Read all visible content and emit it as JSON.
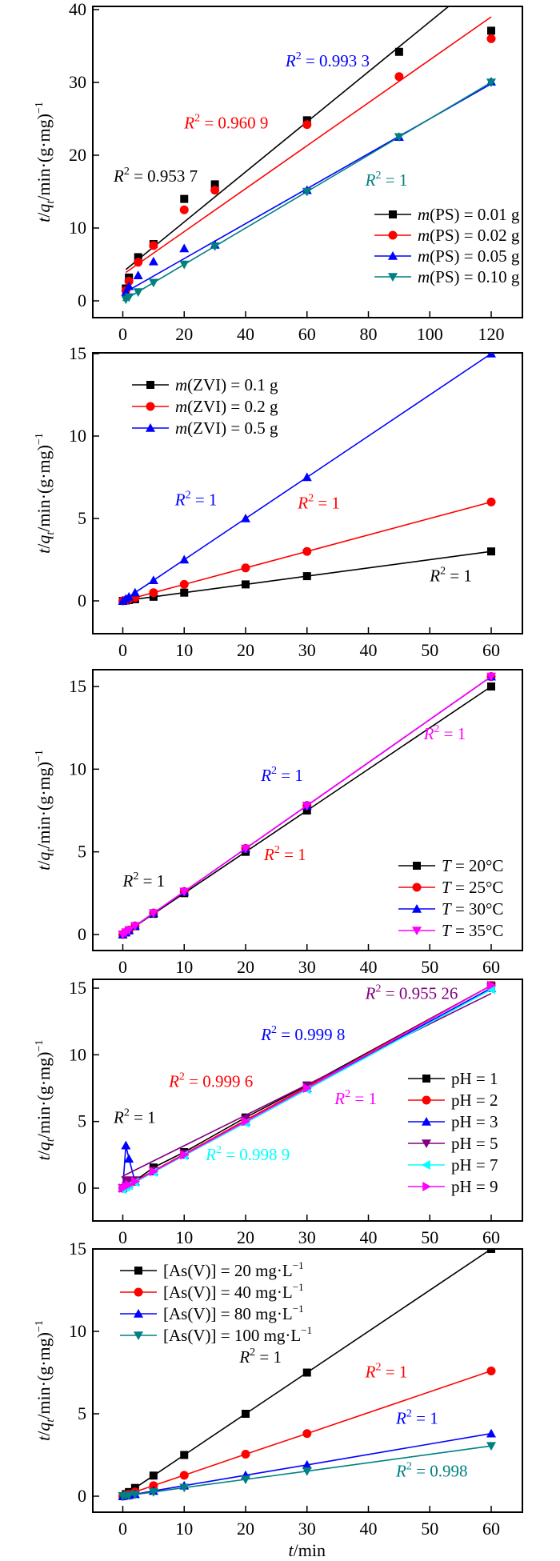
{
  "figure": {
    "panels": 5,
    "shared_xlabel": "t/min"
  },
  "chart_data": [
    {
      "id": "ps",
      "type": "line",
      "title": "",
      "xlabel": "",
      "ylabel": "t/q_t/min·(g·mg)^-1",
      "xlim": [
        -10,
        130
      ],
      "ylim": [
        -2.3,
        40.4
      ],
      "xticks": [
        0,
        20,
        40,
        60,
        80,
        100,
        120
      ],
      "yticks": [
        0,
        10,
        20,
        30,
        40
      ],
      "legend_position": "middle-right",
      "series": [
        {
          "name": "m(PS) = 0.01 g",
          "prefix": "m",
          "label_rest": "(PS) = 0.01 g",
          "color": "#000000",
          "marker": "square",
          "x": [
            1,
            2,
            5,
            10,
            20,
            30,
            60,
            90,
            120
          ],
          "y": [
            1.7,
            3.2,
            6.0,
            7.8,
            14.0,
            16.0,
            24.8,
            34.2,
            37.1
          ],
          "fit": {
            "x": [
              1,
              106
            ],
            "y": [
              4.3,
              40.4
            ]
          },
          "connect": false
        },
        {
          "name": "m(PS) = 0.02 g",
          "prefix": "m",
          "label_rest": "(PS) = 0.02 g",
          "color": "#ff0000",
          "marker": "circle",
          "x": [
            1,
            2,
            5,
            10,
            20,
            30,
            60,
            90,
            120
          ],
          "y": [
            1.4,
            2.7,
            5.3,
            7.6,
            12.5,
            15.2,
            24.2,
            30.8,
            36.0
          ],
          "fit": {
            "x": [
              1,
              120
            ],
            "y": [
              3.9,
              39.0
            ]
          },
          "connect": false
        },
        {
          "name": "m(PS) = 0.05 g",
          "prefix": "m",
          "label_rest": "(PS) = 0.05 g",
          "color": "#0000ff",
          "marker": "triangle-up",
          "x": [
            1,
            2,
            5,
            10,
            20,
            30,
            60,
            90,
            120
          ],
          "y": [
            1.2,
            2.0,
            3.5,
            5.4,
            7.2,
            7.7,
            15.2,
            22.5,
            30.1
          ],
          "fit": {
            "x": [
              0,
              120
            ],
            "y": [
              1.0,
              29.8
            ]
          },
          "connect": false
        },
        {
          "name": "m(PS) = 0.10 g",
          "prefix": "m",
          "label_rest": "(PS) = 0.10 g",
          "color": "#008080",
          "marker": "triangle-down",
          "x": [
            1,
            2,
            5,
            10,
            20,
            30,
            60,
            90,
            120
          ],
          "y": [
            0.2,
            0.5,
            1.2,
            2.5,
            5.0,
            7.5,
            15.0,
            22.5,
            30.0
          ],
          "fit": {
            "x": [
              0,
              120
            ],
            "y": [
              0.0,
              30.0
            ]
          },
          "connect": false
        }
      ],
      "annotations": [
        {
          "text_r": "R",
          "text_rest": " = 0.993 3",
          "color": "#0000ff",
          "x": 53,
          "y": 32.2
        },
        {
          "text_r": "R",
          "text_rest": " = 0.960 9",
          "color": "#ff0000",
          "x": 20,
          "y": 23.7
        },
        {
          "text_r": "R",
          "text_rest": " = 1",
          "color": "#008080",
          "x": 79,
          "y": 15.8
        },
        {
          "text_r": "R",
          "text_rest": " = 0.953 7",
          "color": "#000000",
          "x": -3,
          "y": 16.4
        }
      ]
    },
    {
      "id": "zvi",
      "type": "line",
      "xlabel": "",
      "ylabel": "t/q_t/min·(g·mg)^-1",
      "xlim": [
        -5,
        65
      ],
      "ylim": [
        -2.0,
        15.0
      ],
      "xticks": [
        0,
        10,
        20,
        30,
        40,
        50,
        60
      ],
      "yticks": [
        0,
        5,
        10,
        15
      ],
      "legend_position": "top-left",
      "series": [
        {
          "name": "m(ZVI) = 0.1 g",
          "prefix": "m",
          "label_rest": "(ZVI) = 0.1 g",
          "color": "#000000",
          "marker": "square",
          "x": [
            0,
            0.5,
            1,
            2,
            5,
            10,
            20,
            30,
            60
          ],
          "y": [
            0,
            0.025,
            0.05,
            0.1,
            0.25,
            0.5,
            1.0,
            1.5,
            3.0
          ],
          "connect": true
        },
        {
          "name": "m(ZVI) = 0.2 g",
          "prefix": "m",
          "label_rest": "(ZVI) = 0.2 g",
          "color": "#ff0000",
          "marker": "circle",
          "x": [
            0,
            0.5,
            1,
            2,
            5,
            10,
            20,
            30,
            60
          ],
          "y": [
            0,
            0.05,
            0.1,
            0.2,
            0.5,
            1.0,
            2.0,
            3.0,
            6.0
          ],
          "connect": true
        },
        {
          "name": "m(ZVI) = 0.5 g",
          "prefix": "m",
          "label_rest": "(ZVI) = 0.5 g",
          "color": "#0000ff",
          "marker": "triangle-up",
          "x": [
            0,
            0.5,
            1,
            2,
            5,
            10,
            20,
            30,
            60
          ],
          "y": [
            0,
            0.125,
            0.25,
            0.5,
            1.25,
            2.5,
            5.0,
            7.5,
            15.0
          ],
          "connect": true
        }
      ],
      "annotations": [
        {
          "text_r": "R",
          "text_rest": " = 1",
          "color": "#0000ff",
          "x": 8.5,
          "y": 5.8
        },
        {
          "text_r": "R",
          "text_rest": " = 1",
          "color": "#ff0000",
          "x": 28.5,
          "y": 5.6
        },
        {
          "text_r": "R",
          "text_rest": " = 1",
          "color": "#000000",
          "x": 50,
          "y": 1.2
        }
      ]
    },
    {
      "id": "temperature",
      "type": "line",
      "xlabel": "",
      "ylabel": "t/q_t/min·(g·mg)^-1",
      "xlim": [
        -5,
        65
      ],
      "ylim": [
        -1.0,
        16.0
      ],
      "xticks": [
        0,
        10,
        20,
        30,
        40,
        50,
        60
      ],
      "yticks": [
        0,
        5,
        10,
        15
      ],
      "legend_position": "bottom-right",
      "series": [
        {
          "name": "T = 20°C",
          "prefix": "T",
          "label_rest": " = 20°C",
          "color": "#000000",
          "marker": "square",
          "x": [
            0,
            0.5,
            1,
            2,
            5,
            10,
            20,
            30,
            60
          ],
          "y": [
            0,
            0.125,
            0.25,
            0.5,
            1.25,
            2.5,
            5.0,
            7.5,
            15.0
          ],
          "connect": true
        },
        {
          "name": "T = 25°C",
          "prefix": "T",
          "label_rest": " = 25°C",
          "color": "#ff0000",
          "marker": "circle",
          "x": [
            0,
            0.5,
            1,
            2,
            5,
            10,
            20,
            30,
            60
          ],
          "y": [
            0,
            0.13,
            0.26,
            0.52,
            1.3,
            2.6,
            5.2,
            7.8,
            15.6
          ],
          "connect": true
        },
        {
          "name": "T = 30°C",
          "prefix": "T",
          "label_rest": " = 30°C",
          "color": "#0000ff",
          "marker": "triangle-up",
          "x": [
            0,
            0.5,
            1,
            2,
            5,
            10,
            20,
            30,
            60
          ],
          "y": [
            0,
            0.13,
            0.26,
            0.52,
            1.3,
            2.6,
            5.2,
            7.8,
            15.6
          ],
          "connect": true
        },
        {
          "name": "T = 35°C",
          "prefix": "T",
          "label_rest": " = 35°C",
          "color": "#ff00ff",
          "marker": "triangle-down",
          "x": [
            0,
            0.5,
            1,
            2,
            5,
            10,
            20,
            30,
            60
          ],
          "y": [
            0,
            0.13,
            0.26,
            0.52,
            1.3,
            2.6,
            5.2,
            7.8,
            15.6
          ],
          "connect": true
        }
      ],
      "annotations": [
        {
          "text_r": "R",
          "text_rest": " = 1",
          "color": "#ff00ff",
          "x": 49,
          "y": 11.8
        },
        {
          "text_r": "R",
          "text_rest": " = 1",
          "color": "#0000ff",
          "x": 22.5,
          "y": 9.3
        },
        {
          "text_r": "R",
          "text_rest": " = 1",
          "color": "#ff0000",
          "x": 23,
          "y": 4.5
        },
        {
          "text_r": "R",
          "text_rest": " = 1",
          "color": "#000000",
          "x": 0,
          "y": 2.9
        }
      ]
    },
    {
      "id": "ph",
      "type": "line",
      "xlabel": "",
      "ylabel": "t/q_t/min·(g·mg)^-1",
      "xlim": [
        -5,
        65
      ],
      "ylim": [
        -2.5,
        15.5
      ],
      "xticks": [
        0,
        10,
        20,
        30,
        40,
        50,
        60
      ],
      "yticks": [
        0,
        5,
        10,
        15
      ],
      "legend_position": "right",
      "series": [
        {
          "name": "pH = 1",
          "prefix": "",
          "label_rest": "pH = 1",
          "color": "#000000",
          "marker": "square",
          "x": [
            0,
            0.5,
            1,
            2,
            5,
            10,
            20,
            30,
            60
          ],
          "y": [
            0,
            0.15,
            0.3,
            0.55,
            1.55,
            2.7,
            5.3,
            7.7,
            15.2
          ],
          "connect": true
        },
        {
          "name": "pH = 2",
          "prefix": "",
          "label_rest": "pH = 2",
          "color": "#ff0000",
          "marker": "circle",
          "x": [
            0,
            0.5,
            1,
            2,
            5,
            10,
            20,
            30,
            60
          ],
          "y": [
            0,
            0.13,
            0.26,
            0.52,
            1.3,
            2.55,
            5.1,
            7.6,
            15.2
          ],
          "connect": true
        },
        {
          "name": "pH = 3",
          "prefix": "",
          "label_rest": "pH = 3",
          "color": "#0000ff",
          "marker": "triangle-up",
          "x": [
            0,
            0.5,
            1,
            2,
            5,
            10,
            20,
            30,
            60
          ],
          "y": [
            0,
            3.2,
            2.2,
            0.5,
            1.25,
            2.5,
            5.0,
            7.5,
            15.0
          ],
          "connect": true
        },
        {
          "name": "pH = 5",
          "prefix": "",
          "label_rest": "pH = 5",
          "color": "#800080",
          "marker": "triangle-down",
          "x": [
            0,
            0.5,
            1,
            2,
            5,
            10,
            20,
            30,
            60
          ],
          "y": [
            0,
            0.6,
            0.55,
            0.6,
            1.3,
            2.6,
            5.2,
            7.7,
            15.1
          ],
          "fit": {
            "x": [
              0,
              60
            ],
            "y": [
              0.9,
              14.6
            ]
          },
          "connect": false
        },
        {
          "name": "pH = 7",
          "prefix": "",
          "label_rest": "pH = 7",
          "color": "#00ffff",
          "marker": "triangle-left",
          "x": [
            0,
            0.5,
            1,
            2,
            5,
            10,
            20,
            30,
            60
          ],
          "y": [
            -0.1,
            0.1,
            0.2,
            0.45,
            1.2,
            2.45,
            4.9,
            7.4,
            14.9
          ],
          "connect": true
        },
        {
          "name": "pH = 9",
          "prefix": "",
          "label_rest": "pH = 9",
          "color": "#ff00ff",
          "marker": "triangle-right",
          "x": [
            0,
            0.5,
            1,
            2,
            5,
            10,
            20,
            30,
            60
          ],
          "y": [
            0,
            0.13,
            0.25,
            0.5,
            1.25,
            2.5,
            5.0,
            7.5,
            15.2
          ],
          "connect": true
        }
      ],
      "annotations": [
        {
          "text_r": "R",
          "text_rest": " = 0.955 26",
          "color": "#800080",
          "x": 39.5,
          "y": 14.2
        },
        {
          "text_r": "R",
          "text_rest": " = 0.999 8",
          "color": "#0000ff",
          "x": 22.5,
          "y": 11.1
        },
        {
          "text_r": "R",
          "text_rest": " = 0.999 6",
          "color": "#ff0000",
          "x": 7.5,
          "y": 7.6
        },
        {
          "text_r": "R",
          "text_rest": " = 1",
          "color": "#ff00ff",
          "x": 34.5,
          "y": 6.3
        },
        {
          "text_r": "R",
          "text_rest": " = 1",
          "color": "#000000",
          "x": -1.5,
          "y": 4.9
        },
        {
          "text_r": "R",
          "text_rest": " = 0.998 9",
          "color": "#00ffff",
          "x": 13.5,
          "y": 2.1
        }
      ]
    },
    {
      "id": "asv",
      "type": "line",
      "xlabel": "t/min",
      "ylabel": "t/q_t/min·(g·mg)^-1",
      "xlim": [
        -5,
        65
      ],
      "ylim": [
        -1.0,
        15.0
      ],
      "xticks": [
        0,
        10,
        20,
        30,
        40,
        50,
        60
      ],
      "yticks": [
        0,
        5,
        10,
        15
      ],
      "legend_position": "top-left",
      "series": [
        {
          "name": "[As(V)] = 20 mg·L^-1",
          "prefix": "",
          "label_rest": "[As(V)] = 20 mg·L",
          "label_sup": "−1",
          "color": "#000000",
          "marker": "square",
          "x": [
            0,
            0.5,
            1,
            2,
            5,
            10,
            20,
            30,
            60
          ],
          "y": [
            0,
            0.125,
            0.25,
            0.5,
            1.25,
            2.5,
            5.0,
            7.5,
            15.0
          ],
          "connect": true
        },
        {
          "name": "[As(V)] = 40 mg·L^-1",
          "prefix": "",
          "label_rest": "[As(V)] = 40 mg·L",
          "label_sup": "−1",
          "color": "#ff0000",
          "marker": "circle",
          "x": [
            0,
            0.5,
            1,
            2,
            5,
            10,
            20,
            30,
            60
          ],
          "y": [
            0,
            0.065,
            0.13,
            0.26,
            0.64,
            1.27,
            2.55,
            3.8,
            7.6
          ],
          "connect": true
        },
        {
          "name": "[As(V)] = 80 mg·L^-1",
          "prefix": "",
          "label_rest": "[As(V)] = 80 mg·L",
          "label_sup": "−1",
          "color": "#0000ff",
          "marker": "triangle-up",
          "x": [
            0,
            0.5,
            1,
            2,
            5,
            10,
            20,
            30,
            60
          ],
          "y": [
            0,
            0.03,
            0.06,
            0.12,
            0.32,
            0.64,
            1.27,
            1.9,
            3.8
          ],
          "connect": true
        },
        {
          "name": "[As(V)] = 100 mg·L^-1",
          "prefix": "",
          "label_rest": "[As(V)] = 100 mg·L",
          "label_sup": "−1",
          "color": "#008080",
          "marker": "triangle-down",
          "x": [
            0,
            0.5,
            1,
            2,
            5,
            10,
            20,
            30,
            60
          ],
          "y": [
            0,
            0.025,
            0.05,
            0.1,
            0.25,
            0.52,
            1.02,
            1.52,
            3.05
          ],
          "connect": true
        }
      ],
      "annotations": [
        {
          "text_r": "R",
          "text_rest": " = 1",
          "color": "#000000",
          "x": 19,
          "y": 8.1
        },
        {
          "text_r": "R",
          "text_rest": " = 1",
          "color": "#ff0000",
          "x": 39.5,
          "y": 7.2
        },
        {
          "text_r": "R",
          "text_rest": " = 1",
          "color": "#0000ff",
          "x": 44.5,
          "y": 4.4
        },
        {
          "text_r": "R",
          "text_rest": " = 0.998",
          "color": "#008080",
          "x": 44.5,
          "y": 1.2
        }
      ]
    }
  ]
}
